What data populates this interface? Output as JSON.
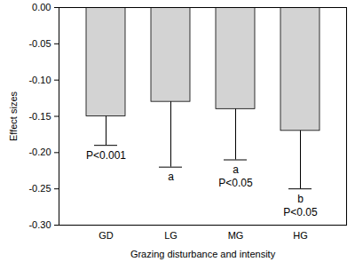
{
  "chart_data": {
    "type": "bar",
    "x_label": "Grazing disturbance and intensity",
    "y_label": "Effect sizes",
    "categories": [
      "GD",
      "LG",
      "MG",
      "HG"
    ],
    "values": [
      -0.15,
      -0.13,
      -0.14,
      -0.17
    ],
    "errors": [
      0.04,
      0.09,
      0.07,
      0.08
    ],
    "letters": [
      null,
      "a",
      "a",
      "b"
    ],
    "p_values": [
      "P<0.001",
      null,
      "P<0.05",
      "P<0.05"
    ],
    "color": "#d3d3d3",
    "ylim": [
      -0.3,
      0
    ],
    "yticks": [
      {
        "value": 0,
        "label": "0.00"
      },
      {
        "value": -0.05,
        "label": "-0.05"
      },
      {
        "value": -0.1,
        "label": "-0.10"
      },
      {
        "value": -0.15,
        "label": "-0.15"
      },
      {
        "value": -0.2,
        "label": "-0.20"
      },
      {
        "value": -0.25,
        "label": "-0.25"
      },
      {
        "value": -0.3,
        "label": "-0.30"
      }
    ],
    "grid": false
  }
}
